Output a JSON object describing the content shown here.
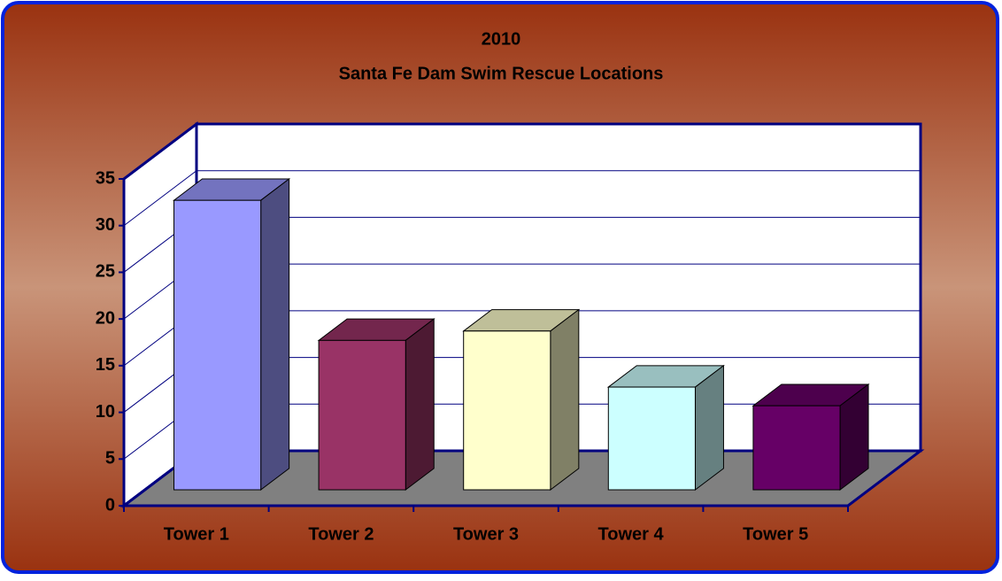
{
  "chart_data": {
    "type": "bar3d",
    "title": "2010",
    "subtitle": "Santa Fe Dam Swim Rescue Locations",
    "categories": [
      "Tower 1",
      "Tower 2",
      "Tower 3",
      "Tower 4",
      "Tower 5"
    ],
    "values": [
      31,
      16,
      17,
      11,
      9
    ],
    "colors": [
      "#9999ff",
      "#993366",
      "#ffffcc",
      "#ccffff",
      "#660066"
    ],
    "ylim": [
      0,
      35
    ],
    "yticks": [
      0,
      5,
      10,
      15,
      20,
      25,
      30,
      35
    ],
    "grid": true
  }
}
